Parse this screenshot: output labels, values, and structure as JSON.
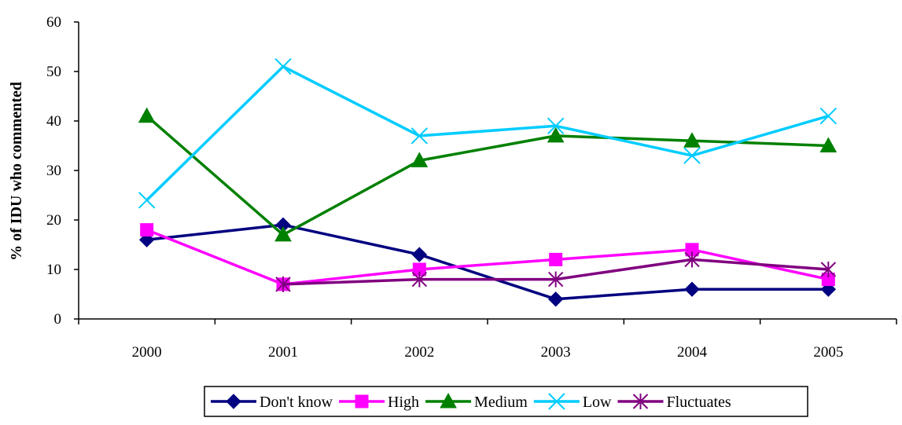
{
  "chart_data": {
    "type": "line",
    "title": "",
    "xlabel": "",
    "ylabel": "% of IDU who commented",
    "categories": [
      "2000",
      "2001",
      "2002",
      "2003",
      "2004",
      "2005"
    ],
    "ylim": [
      0,
      60
    ],
    "yticks": [
      "0",
      "10",
      "20",
      "30",
      "40",
      "50",
      "60"
    ],
    "grid": false,
    "legend_position": "bottom",
    "series": [
      {
        "name": "Don't know",
        "color": "#000080",
        "marker": "diamond",
        "values": [
          16,
          19,
          13,
          4,
          6,
          6
        ]
      },
      {
        "name": "High",
        "color": "#ff00ff",
        "marker": "square",
        "values": [
          18,
          7,
          10,
          12,
          14,
          8
        ]
      },
      {
        "name": "Medium",
        "color": "#008000",
        "marker": "triangle",
        "values": [
          41,
          17,
          32,
          37,
          36,
          35
        ]
      },
      {
        "name": "Low",
        "color": "#00ccff",
        "marker": "x",
        "values": [
          24,
          51,
          37,
          39,
          33,
          41
        ]
      },
      {
        "name": "Fluctuates",
        "color": "#800080",
        "marker": "asterisk",
        "values": [
          null,
          7,
          8,
          8,
          12,
          10
        ]
      }
    ]
  }
}
